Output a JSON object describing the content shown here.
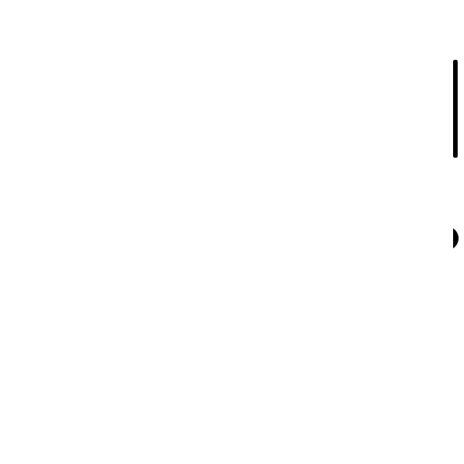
{
  "colors": {
    "background": "#ffffff",
    "shape": "#000000"
  },
  "shapes": {
    "top_bar": {
      "icon": "scrollbar-thumb-icon"
    },
    "middle_knob": {
      "icon": "handle-icon"
    }
  }
}
